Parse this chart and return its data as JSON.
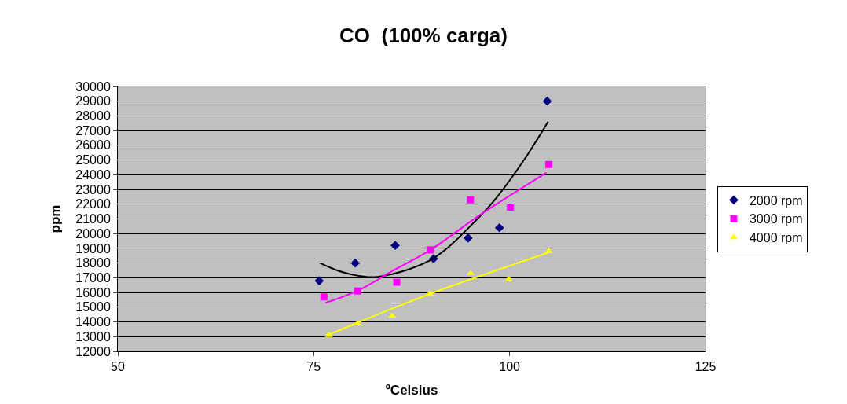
{
  "chart_data": {
    "type": "scatter",
    "title": "CO  (100% carga)",
    "xlabel": "ºCelsius",
    "ylabel": "ppm",
    "xlim": [
      50,
      125
    ],
    "xticks": [
      50,
      75,
      100,
      125
    ],
    "ylim": [
      12000,
      30000
    ],
    "yticks": [
      12000,
      13000,
      14000,
      15000,
      16000,
      17000,
      18000,
      19000,
      20000,
      21000,
      22000,
      23000,
      24000,
      25000,
      26000,
      27000,
      28000,
      29000,
      30000
    ],
    "grid": "y",
    "legend": "right",
    "series": [
      {
        "name": "2000 rpm",
        "color": "#000080",
        "marker": "diamond",
        "x": [
          75.7,
          80.3,
          85.4,
          90.3,
          94.7,
          98.7,
          104.8
        ],
        "values": [
          16800,
          18000,
          19200,
          18300,
          19700,
          20400,
          29000
        ]
      },
      {
        "name": "3000 rpm",
        "color": "#ff00ff",
        "marker": "square",
        "x": [
          76.3,
          80.6,
          85.6,
          89.9,
          95,
          100.1,
          105
        ],
        "values": [
          15700,
          16100,
          16700,
          18900,
          22300,
          21800,
          24700
        ]
      },
      {
        "name": "4000 rpm",
        "color": "#ffff00",
        "marker": "triangle",
        "x": [
          76.9,
          80.6,
          85,
          89.8,
          95,
          99.9,
          105
        ],
        "values": [
          13100,
          13900,
          14400,
          15900,
          17300,
          16900,
          18800
        ]
      },
      {
        "type": "line",
        "color": "#000000",
        "marker": "none",
        "x": [
          75.8,
          78,
          80,
          82.7,
          85,
          87.5,
          89.7,
          92,
          94.3,
          97.8,
          101.7,
          104.9
        ],
        "values": [
          18000,
          17500,
          17200,
          17050,
          17250,
          17650,
          18150,
          19000,
          20150,
          22100,
          24900,
          27600
        ]
      },
      {
        "type": "line",
        "color": "#ff00ff",
        "marker": "none",
        "x": [
          76.5,
          80.7,
          85,
          89.9,
          96.3,
          104.7
        ],
        "values": [
          15300,
          16150,
          17450,
          18900,
          21300,
          24150
        ]
      },
      {
        "type": "line",
        "color": "#ffff00",
        "marker": "none",
        "x": [
          76.8,
          80.6,
          89.8,
          104.9
        ],
        "values": [
          13100,
          13950,
          15900,
          18700
        ]
      }
    ]
  }
}
